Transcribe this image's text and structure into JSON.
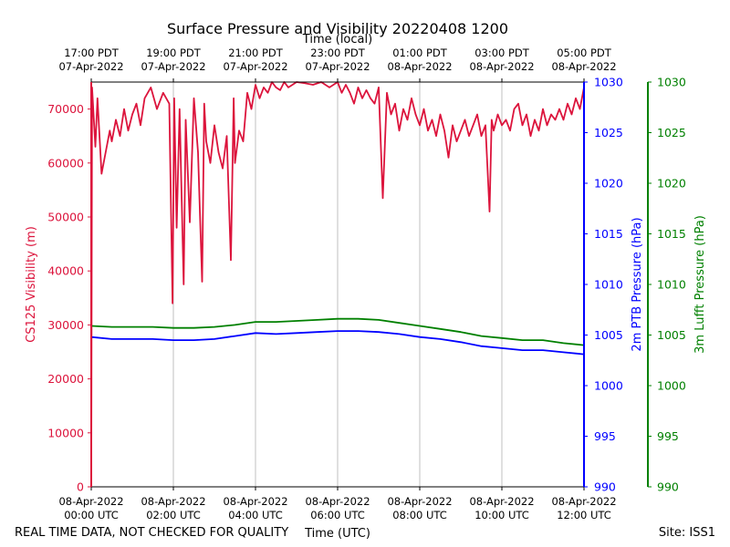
{
  "chart_data": {
    "type": "line",
    "title": "Surface Pressure and Visibility 20220408 1200",
    "top_xlabel": "Time (local)",
    "bottom_xlabel": "Time (UTC)",
    "footer_left": "REAL TIME DATA, NOT CHECKED FOR QUALITY",
    "footer_right": "Site: ISS1",
    "x_range_hours_utc": [
      0,
      12
    ],
    "bottom_ticks": [
      {
        "hour": 0,
        "line1": "08-Apr-2022",
        "line2": "00:00 UTC"
      },
      {
        "hour": 2,
        "line1": "08-Apr-2022",
        "line2": "02:00 UTC"
      },
      {
        "hour": 4,
        "line1": "08-Apr-2022",
        "line2": "04:00 UTC"
      },
      {
        "hour": 6,
        "line1": "08-Apr-2022",
        "line2": "06:00 UTC"
      },
      {
        "hour": 8,
        "line1": "08-Apr-2022",
        "line2": "08:00 UTC"
      },
      {
        "hour": 10,
        "line1": "08-Apr-2022",
        "line2": "10:00 UTC"
      },
      {
        "hour": 12,
        "line1": "08-Apr-2022",
        "line2": "12:00 UTC"
      }
    ],
    "top_ticks": [
      {
        "hour": 0,
        "line1": "17:00 PDT",
        "line2": "07-Apr-2022"
      },
      {
        "hour": 2,
        "line1": "19:00 PDT",
        "line2": "07-Apr-2022"
      },
      {
        "hour": 4,
        "line1": "21:00 PDT",
        "line2": "07-Apr-2022"
      },
      {
        "hour": 6,
        "line1": "23:00 PDT",
        "line2": "07-Apr-2022"
      },
      {
        "hour": 8,
        "line1": "01:00 PDT",
        "line2": "08-Apr-2022"
      },
      {
        "hour": 10,
        "line1": "03:00 PDT",
        "line2": "08-Apr-2022"
      },
      {
        "hour": 12,
        "line1": "05:00 PDT",
        "line2": "08-Apr-2022"
      }
    ],
    "axes": {
      "visibility": {
        "label": "CS125 Visibility (m)",
        "ylim": [
          0,
          75000
        ],
        "ticks": [
          "0",
          "10000",
          "20000",
          "30000",
          "40000",
          "50000",
          "60000",
          "70000"
        ],
        "color": "#dc143c"
      },
      "ptb": {
        "label": "2m PTB Pressure (hPa)",
        "ylim": [
          990,
          1030
        ],
        "ticks": [
          "990",
          "995",
          "1000",
          "1005",
          "1010",
          "1015",
          "1020",
          "1025",
          "1030"
        ],
        "color": "#0000ff"
      },
      "lufft": {
        "label": "3m Lufft Pressure (hPa)",
        "ylim": [
          990,
          1030
        ],
        "ticks": [
          "990",
          "995",
          "1000",
          "1005",
          "1010",
          "1015",
          "1020",
          "1025",
          "1030"
        ],
        "color": "#008000"
      }
    },
    "series": [
      {
        "name": "CS125 Visibility",
        "axis": "visibility",
        "color": "#dc143c",
        "x": [
          0,
          0.02,
          0.1,
          0.15,
          0.25,
          0.35,
          0.45,
          0.5,
          0.6,
          0.7,
          0.8,
          0.9,
          1.0,
          1.1,
          1.2,
          1.3,
          1.45,
          1.6,
          1.75,
          1.9,
          1.98,
          2.02,
          2.08,
          2.15,
          2.25,
          2.3,
          2.4,
          2.5,
          2.6,
          2.7,
          2.75,
          2.8,
          2.9,
          3.0,
          3.1,
          3.2,
          3.3,
          3.4,
          3.47,
          3.5,
          3.6,
          3.7,
          3.8,
          3.9,
          4.0,
          4.1,
          4.2,
          4.3,
          4.4,
          4.5,
          4.6,
          4.7,
          4.8,
          4.9,
          5.0,
          5.2,
          5.4,
          5.6,
          5.8,
          6.0,
          6.1,
          6.2,
          6.3,
          6.4,
          6.5,
          6.6,
          6.7,
          6.8,
          6.9,
          7.0,
          7.1,
          7.2,
          7.3,
          7.4,
          7.5,
          7.6,
          7.7,
          7.8,
          7.9,
          8.0,
          8.1,
          8.2,
          8.3,
          8.4,
          8.5,
          8.6,
          8.7,
          8.8,
          8.9,
          9.0,
          9.1,
          9.2,
          9.3,
          9.4,
          9.5,
          9.6,
          9.7,
          9.75,
          9.8,
          9.9,
          10.0,
          10.1,
          10.2,
          10.3,
          10.4,
          10.5,
          10.6,
          10.7,
          10.8,
          10.9,
          11.0,
          11.1,
          11.2,
          11.3,
          11.4,
          11.5,
          11.6,
          11.7,
          11.8,
          11.9,
          12.0
        ],
        "y": [
          0,
          74000,
          63000,
          72000,
          58000,
          62000,
          66000,
          64000,
          68000,
          65000,
          70000,
          66000,
          69000,
          71000,
          67000,
          72000,
          74000,
          70000,
          73000,
          71000,
          34000,
          72000,
          48000,
          70000,
          37500,
          68000,
          49000,
          72000,
          62000,
          38000,
          71000,
          64000,
          60000,
          67000,
          62000,
          59000,
          65000,
          42000,
          72000,
          60000,
          66000,
          64000,
          73000,
          70000,
          74500,
          72000,
          74000,
          73000,
          75000,
          74000,
          73500,
          75000,
          74000,
          74500,
          75000,
          74800,
          74500,
          75000,
          74000,
          75000,
          73000,
          74500,
          73000,
          71000,
          74000,
          72000,
          73500,
          72000,
          71000,
          74000,
          53500,
          73000,
          69000,
          71000,
          66000,
          70000,
          68000,
          72000,
          69000,
          67000,
          70000,
          66000,
          68000,
          65000,
          69000,
          66000,
          61000,
          67000,
          64000,
          66000,
          68000,
          65000,
          67000,
          69000,
          65000,
          67000,
          51000,
          68000,
          66000,
          69000,
          67000,
          68000,
          66000,
          70000,
          71000,
          67000,
          69000,
          65000,
          68000,
          66000,
          70000,
          67000,
          69000,
          68000,
          70000,
          68000,
          71000,
          69000,
          72000,
          70000,
          74000
        ]
      },
      {
        "name": "2m PTB Pressure",
        "axis": "ptb",
        "color": "#0000ff",
        "x": [
          0,
          0.5,
          1,
          1.5,
          2,
          2.5,
          3,
          3.5,
          4,
          4.5,
          5,
          5.5,
          6,
          6.5,
          7,
          7.5,
          8,
          8.5,
          9,
          9.5,
          10,
          10.5,
          11,
          11.5,
          12
        ],
        "y": [
          1004.8,
          1004.6,
          1004.6,
          1004.6,
          1004.5,
          1004.5,
          1004.6,
          1004.9,
          1005.2,
          1005.1,
          1005.2,
          1005.3,
          1005.4,
          1005.4,
          1005.3,
          1005.1,
          1004.8,
          1004.6,
          1004.3,
          1003.9,
          1003.7,
          1003.5,
          1003.5,
          1003.3,
          1003.1
        ]
      },
      {
        "name": "3m Lufft Pressure",
        "axis": "lufft",
        "color": "#008000",
        "x": [
          0,
          0.5,
          1,
          1.5,
          2,
          2.5,
          3,
          3.5,
          4,
          4.5,
          5,
          5.5,
          6,
          6.5,
          7,
          7.5,
          8,
          8.5,
          9,
          9.5,
          10,
          10.5,
          11,
          11.5,
          12
        ],
        "y": [
          1005.9,
          1005.8,
          1005.8,
          1005.8,
          1005.7,
          1005.7,
          1005.8,
          1006.0,
          1006.3,
          1006.3,
          1006.4,
          1006.5,
          1006.6,
          1006.6,
          1006.5,
          1006.2,
          1005.9,
          1005.6,
          1005.3,
          1004.9,
          1004.7,
          1004.5,
          1004.5,
          1004.2,
          1004.0
        ]
      }
    ]
  }
}
